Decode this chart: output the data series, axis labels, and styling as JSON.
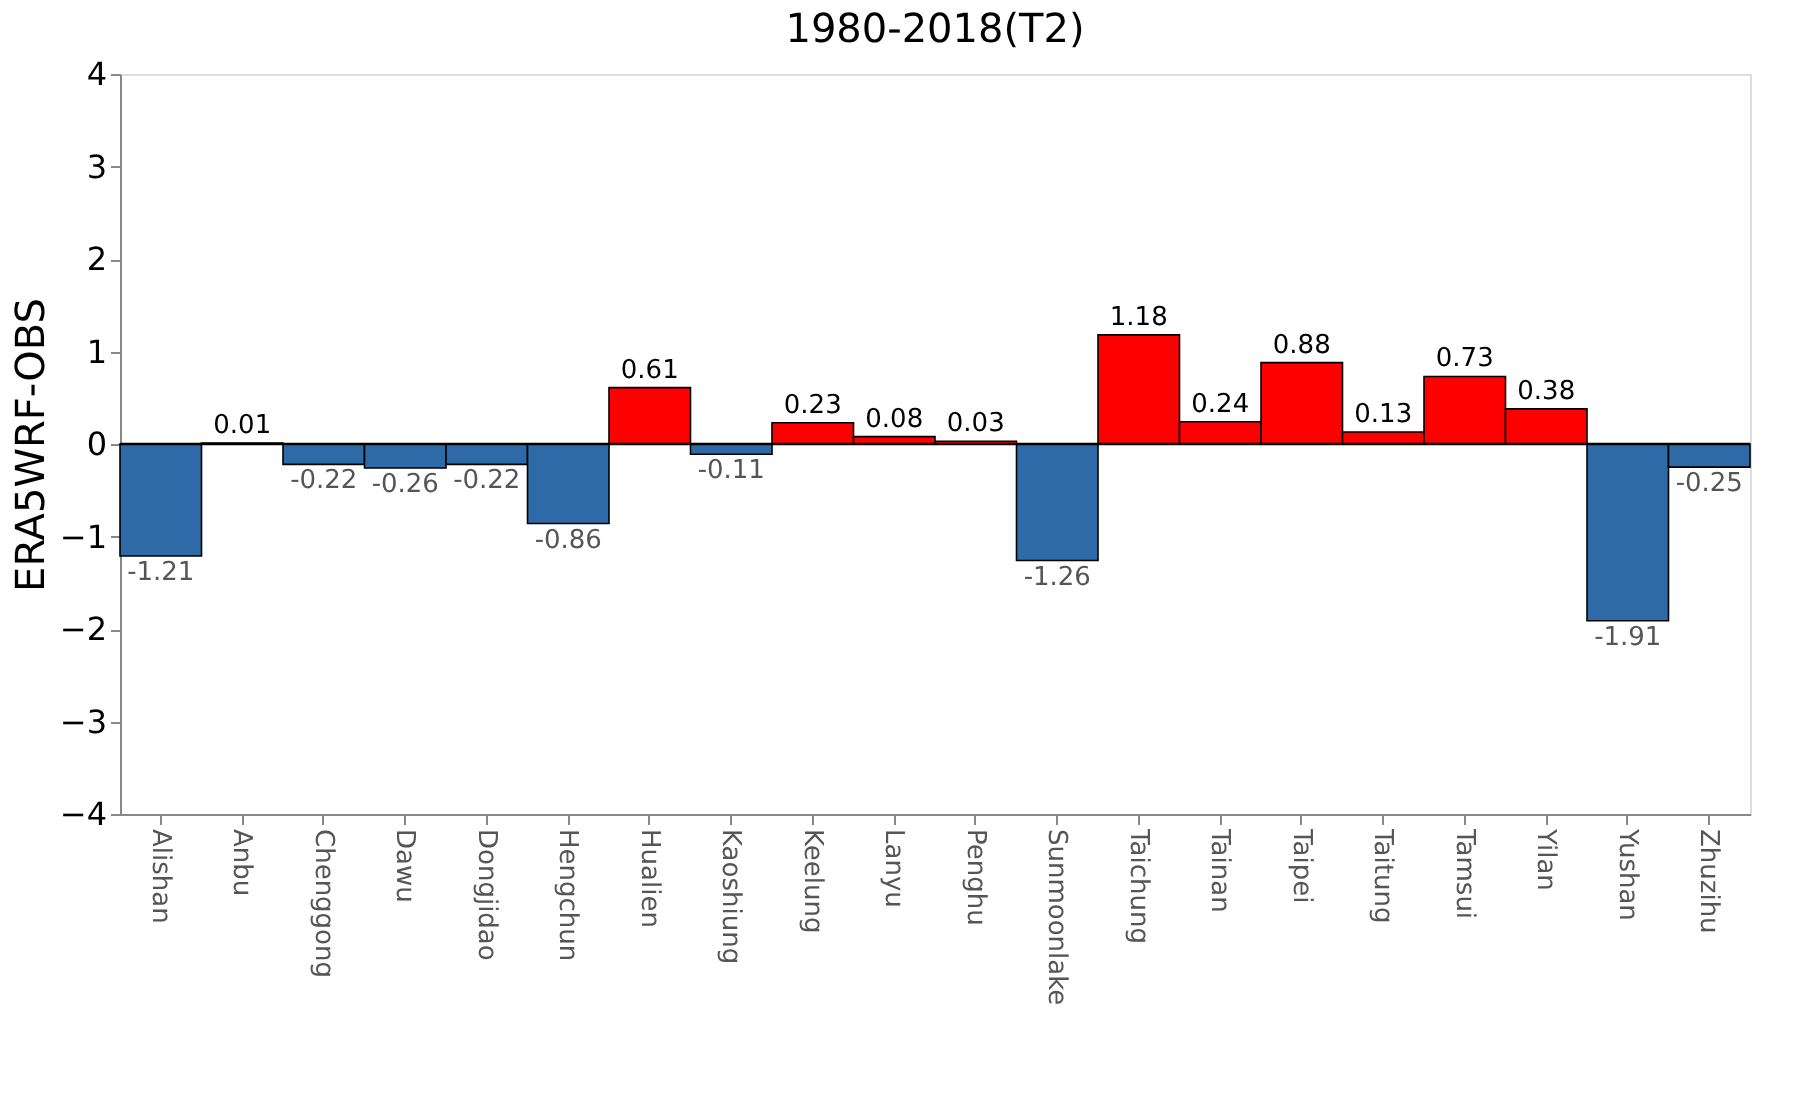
{
  "chart_data": {
    "type": "bar",
    "title": "1980-2018(T2)",
    "ylabel": "ERA5WRF-OBS",
    "categories": [
      "Alishan",
      "Anbu",
      "Chenggong",
      "Dawu",
      "Dongjidao",
      "Hengchun",
      "Hualien",
      "Kaoshiung",
      "Keelung",
      "Lanyu",
      "Penghu",
      "Sunmoonlake",
      "Taichung",
      "Tainan",
      "Taipei",
      "Taitung",
      "Tamsui",
      "Yilan",
      "Yushan",
      "Zhuzihu"
    ],
    "values": [
      -1.21,
      0.01,
      -0.22,
      -0.26,
      -0.22,
      -0.86,
      0.61,
      -0.11,
      0.23,
      0.08,
      0.03,
      -1.26,
      1.18,
      0.24,
      0.88,
      0.13,
      0.73,
      0.38,
      -1.91,
      -0.25
    ],
    "colors": [
      "#2e6aa8",
      "#ff0000",
      "#2e6aa8",
      "#2e6aa8",
      "#2e6aa8",
      "#2e6aa8",
      "#ff0000",
      "#2e6aa8",
      "#ff0000",
      "#ff0000",
      "#ff0000",
      "#2e6aa8",
      "#ff0000",
      "#ff0000",
      "#ff0000",
      "#ff0000",
      "#ff0000",
      "#ff0000",
      "#2e6aa8",
      "#2e6aa8"
    ],
    "ylim": [
      -4,
      4
    ],
    "yticks": [
      -4,
      -3,
      -2,
      -1,
      0,
      1,
      2,
      3,
      4
    ],
    "grid": false,
    "data_labels": true,
    "ref_lines": [
      {
        "axis": "y",
        "value": 0,
        "color": "#000000"
      }
    ]
  }
}
